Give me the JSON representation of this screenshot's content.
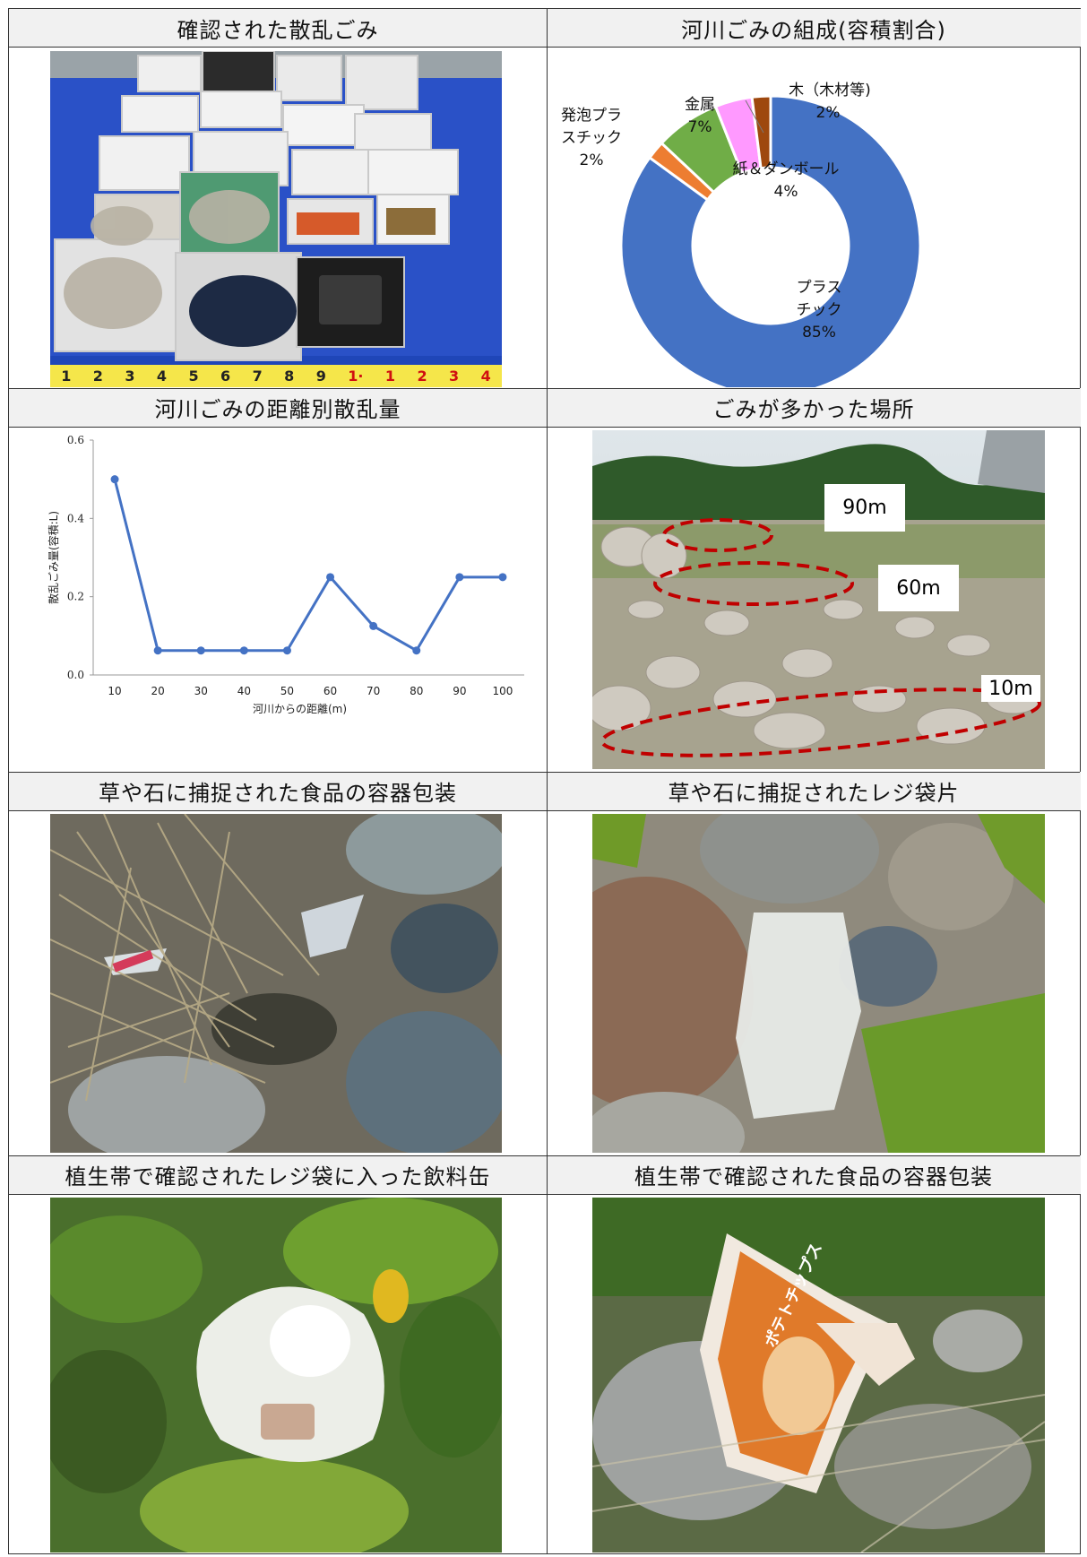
{
  "panels": {
    "p1": {
      "title": "確認された散乱ごみ",
      "ruler": [
        "1",
        "2",
        "3",
        "4",
        "5",
        "6",
        "7",
        "8",
        "9",
        "1·",
        "1",
        "2",
        "3",
        "4"
      ]
    },
    "p2": {
      "title": "河川ごみの組成(容積割合)"
    },
    "p3": {
      "title": "河川ごみの距離別散乱量"
    },
    "p4": {
      "title": "ごみが多かった場所",
      "labels": [
        "90m",
        "60m",
        "10m"
      ]
    },
    "p5": {
      "title": "草や石に捕捉された食品の容器包装"
    },
    "p6": {
      "title": "草や石に捕捉されたレジ袋片"
    },
    "p7": {
      "title": "植生帯で確認されたレジ袋に入った飲料缶"
    },
    "p8": {
      "title": "植生帯で確認された食品の容器包装",
      "package_text": "ポテトチップス"
    }
  },
  "chart_data": [
    {
      "type": "pie",
      "variant": "donut",
      "title": "河川ごみの組成(容積割合)",
      "slices": [
        {
          "label_lines": [
            "プラス",
            "チック"
          ],
          "pct": "85%",
          "value": 85,
          "color": "#4472c4"
        },
        {
          "label_lines": [
            "発泡プラ",
            "スチック"
          ],
          "pct": "2%",
          "value": 2,
          "color": "#ed7d31"
        },
        {
          "label_lines": [
            "金属"
          ],
          "pct": "7%",
          "value": 7,
          "color": "#70ad47"
        },
        {
          "label_lines": [
            "紙＆ダンボール"
          ],
          "pct": "4%",
          "value": 4,
          "color": "#ff99ff"
        },
        {
          "label_lines": [
            "木（木材等)"
          ],
          "pct": "2%",
          "value": 2,
          "color": "#9e480e"
        }
      ]
    },
    {
      "type": "line",
      "title": "河川ごみの距離別散乱量",
      "xlabel": "河川からの距離(m)",
      "ylabel": "散乱ごみ量(容積:L)",
      "x": [
        10,
        20,
        30,
        40,
        50,
        60,
        70,
        80,
        90,
        100
      ],
      "y": [
        0.5,
        0.0625,
        0.0625,
        0.0625,
        0.0625,
        0.25,
        0.125,
        0.0625,
        0.25,
        0.25
      ],
      "ylim": [
        0,
        0.6
      ],
      "yticks": [
        "0.0",
        "0.2",
        "0.4",
        "0.6"
      ],
      "color": "#4472c4",
      "grid": false
    }
  ]
}
